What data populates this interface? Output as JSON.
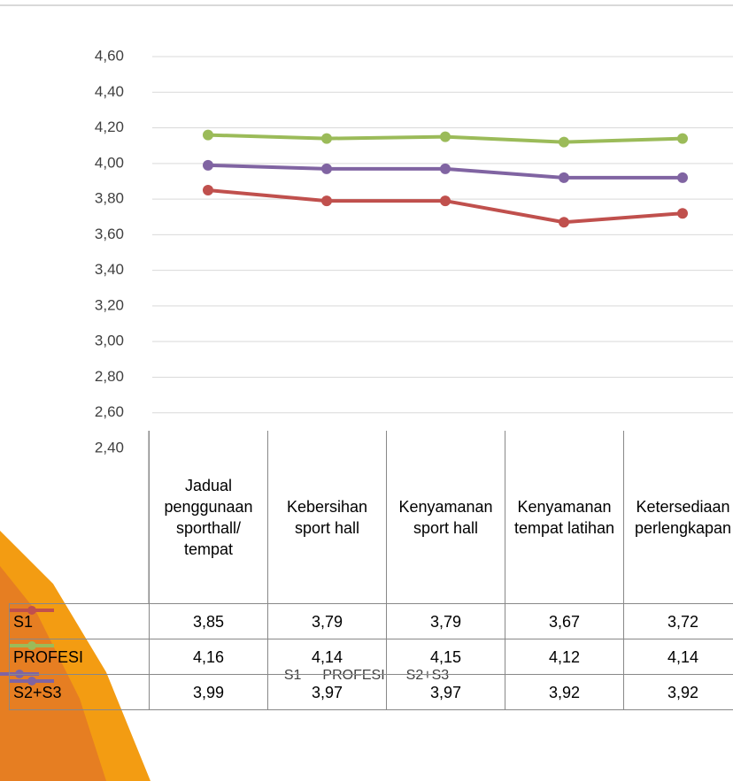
{
  "chart_data": {
    "type": "line",
    "categories": [
      "Jadual penggunaan sporthall/ tempat",
      "Kebersihan sport hall",
      "Kenyamanan sport hall",
      "Kenyamanan tempat latihan",
      "Ketersediaan perlengkapan"
    ],
    "series": [
      {
        "name": "S1",
        "color": "#c0504d",
        "values": [
          3.85,
          3.79,
          3.79,
          3.67,
          3.72
        ],
        "value_labels": [
          "3,85",
          "3,79",
          "3,79",
          "3,67",
          "3,72"
        ]
      },
      {
        "name": "PROFESI",
        "color": "#9bbb59",
        "values": [
          4.16,
          4.14,
          4.15,
          4.12,
          4.14
        ],
        "value_labels": [
          "4,16",
          "4,14",
          "4,15",
          "4,12",
          "4,14"
        ]
      },
      {
        "name": "S2+S3",
        "color": "#8064a2",
        "values": [
          3.99,
          3.97,
          3.97,
          3.92,
          3.92
        ],
        "value_labels": [
          "3,99",
          "3,97",
          "3,97",
          "3,92",
          "3,92"
        ]
      }
    ],
    "ylim": [
      2.4,
      4.6
    ],
    "yticks": [
      {
        "value": 2.4,
        "label": "2,40"
      },
      {
        "value": 2.6,
        "label": "2,60"
      },
      {
        "value": 2.8,
        "label": "2,80"
      },
      {
        "value": 3.0,
        "label": "3,00"
      },
      {
        "value": 3.2,
        "label": "3,20"
      },
      {
        "value": 3.4,
        "label": "3,40"
      },
      {
        "value": 3.6,
        "label": "3,60"
      },
      {
        "value": 3.8,
        "label": "3,80"
      },
      {
        "value": 4.0,
        "label": "4,00"
      },
      {
        "value": 4.2,
        "label": "4,20"
      },
      {
        "value": 4.4,
        "label": "4,40"
      },
      {
        "value": 4.6,
        "label": "4,60"
      }
    ],
    "grid": true,
    "legend": "bottom"
  }
}
